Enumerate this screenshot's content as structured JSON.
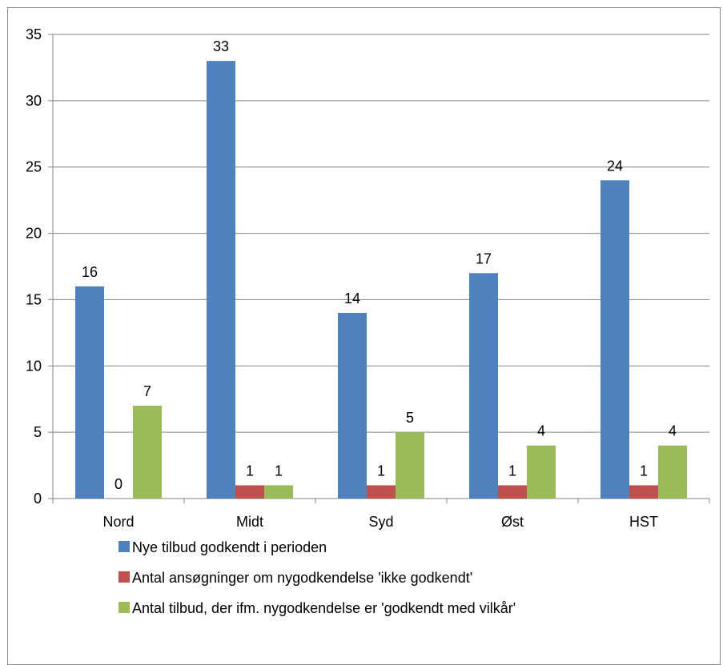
{
  "chart_data": {
    "type": "bar",
    "categories": [
      "Nord",
      "Midt",
      "Syd",
      "Øst",
      "HST"
    ],
    "series": [
      {
        "name": "Nye tilbud godkendt i perioden",
        "color": "#4f81bd",
        "values": [
          16,
          33,
          14,
          17,
          24
        ]
      },
      {
        "name": "Antal ansøgninger om nygodkendelse 'ikke godkendt'",
        "color": "#c0504d",
        "values": [
          0,
          1,
          1,
          1,
          1
        ]
      },
      {
        "name": "Antal tilbud, der ifm. nygodkendelse er 'godkendt med vilkår'",
        "color": "#9bbb59",
        "values": [
          7,
          1,
          5,
          4,
          4
        ]
      }
    ],
    "ylim": [
      0,
      35
    ],
    "yticks": [
      0,
      5,
      10,
      15,
      20,
      25,
      30,
      35
    ],
    "grid": true,
    "legend_position": "bottom"
  }
}
